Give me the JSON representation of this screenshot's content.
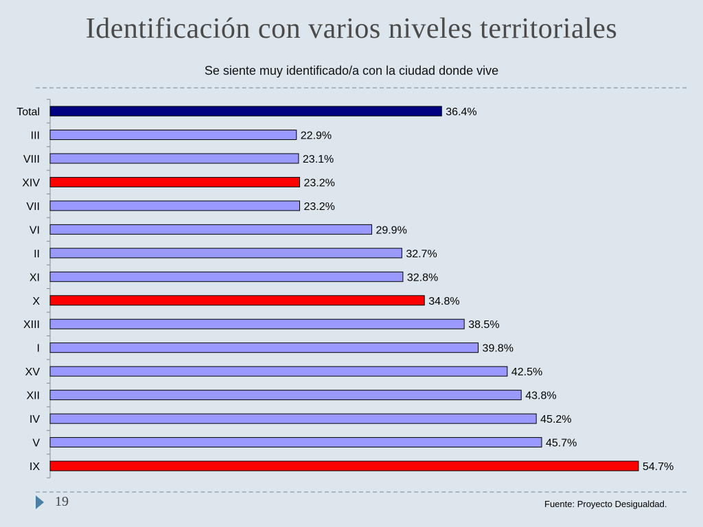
{
  "slide": {
    "title": "Identificación con varios niveles territoriales",
    "page_number": "19",
    "source": "Fuente: Proyecto Desigualdad."
  },
  "colors": {
    "total": "#000080",
    "highlight": "#ff0000",
    "default": "#9999ff",
    "background": "#dde6ec"
  },
  "chart_data": {
    "type": "bar",
    "orientation": "horizontal",
    "title": "Se siente muy identificado/a con la ciudad donde vive",
    "categories": [
      "Total",
      "III",
      "VIII",
      "XIV",
      "VII",
      "VI",
      "II",
      "XI",
      "X",
      "XIII",
      "I",
      "XV",
      "XII",
      "IV",
      "V",
      "IX"
    ],
    "values": [
      36.4,
      22.9,
      23.1,
      23.2,
      23.2,
      29.9,
      32.7,
      32.8,
      34.8,
      38.5,
      39.8,
      42.5,
      43.8,
      45.2,
      45.7,
      54.7
    ],
    "data_labels": [
      "36.4%",
      "22.9%",
      "23.1%",
      "23.2%",
      "23.2%",
      "29.9%",
      "32.7%",
      "32.8%",
      "34.8%",
      "38.5%",
      "39.8%",
      "42.5%",
      "43.8%",
      "45.2%",
      "45.7%",
      "54.7%"
    ],
    "bar_color_keys": [
      "total",
      "default",
      "default",
      "highlight",
      "default",
      "default",
      "default",
      "default",
      "highlight",
      "default",
      "default",
      "default",
      "default",
      "default",
      "default",
      "highlight"
    ],
    "xlim": [
      0,
      54.7
    ],
    "grid": false,
    "legend": "none"
  }
}
